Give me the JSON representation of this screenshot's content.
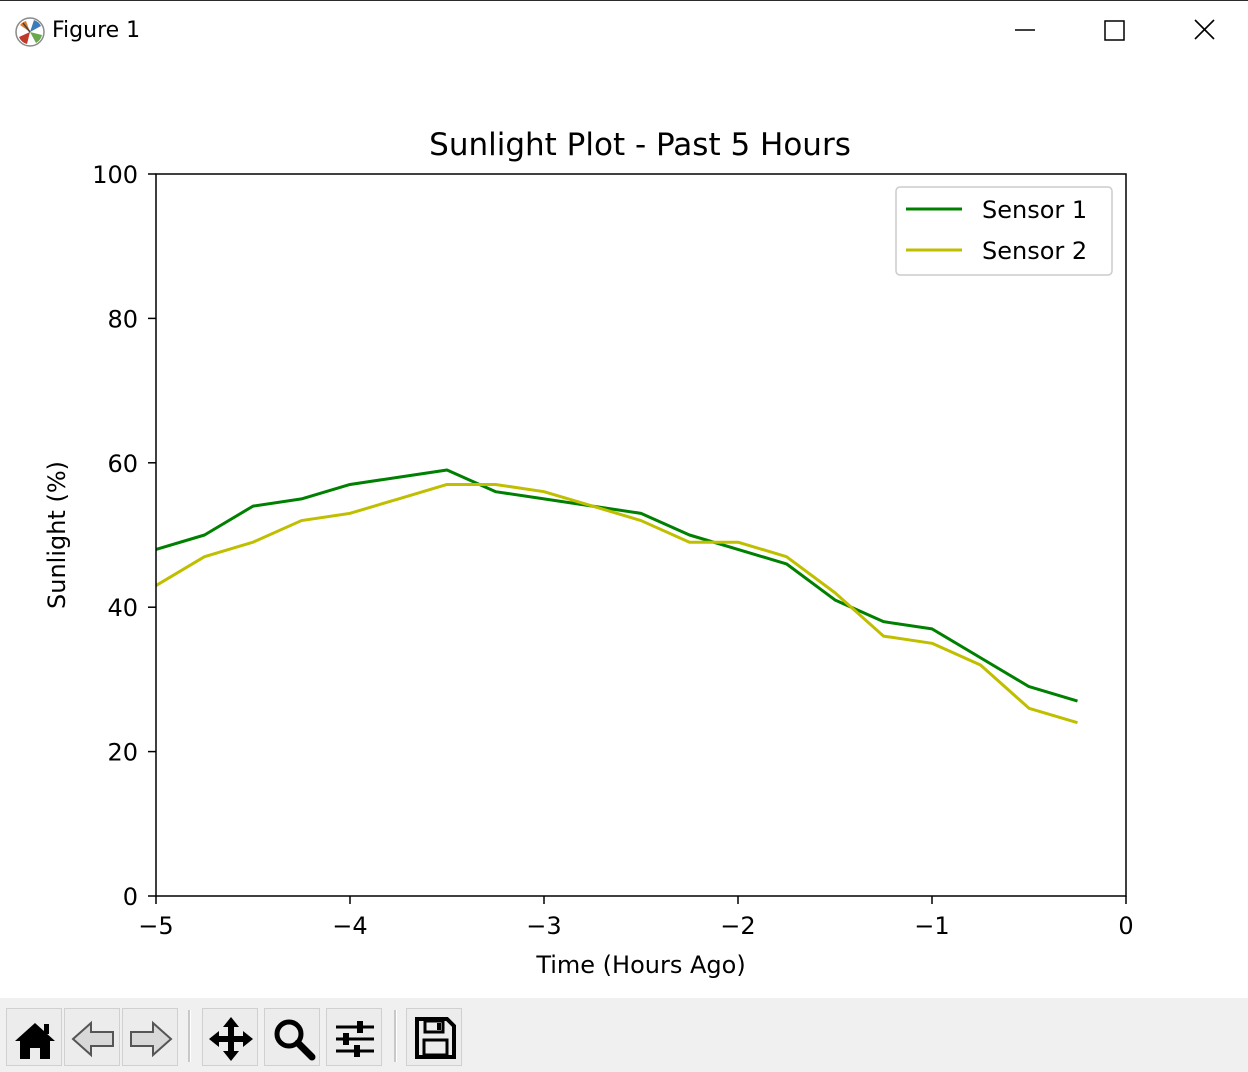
{
  "window": {
    "title": "Figure 1"
  },
  "toolbar": {
    "buttons": [
      {
        "name": "home-button",
        "icon": "home-icon"
      },
      {
        "name": "back-button",
        "icon": "arrow-left-icon"
      },
      {
        "name": "forward-button",
        "icon": "arrow-right-icon"
      },
      {
        "name": "pan-button",
        "icon": "move-icon"
      },
      {
        "name": "zoom-button",
        "icon": "magnifier-icon"
      },
      {
        "name": "configure-subplots-button",
        "icon": "sliders-icon"
      },
      {
        "name": "save-button",
        "icon": "floppy-disk-icon"
      }
    ]
  },
  "chart_data": {
    "type": "line",
    "title": "Sunlight Plot - Past 5 Hours",
    "xlabel": "Time (Hours Ago)",
    "ylabel": "Sunlight (%)",
    "xlim": [
      -5,
      0
    ],
    "ylim": [
      0,
      100
    ],
    "xticks": [
      -5,
      -4,
      -3,
      -2,
      -1,
      0
    ],
    "xtick_labels": [
      "−5",
      "−4",
      "−3",
      "−2",
      "−1",
      "0"
    ],
    "yticks": [
      0,
      20,
      40,
      60,
      80,
      100
    ],
    "ytick_labels": [
      "0",
      "20",
      "40",
      "60",
      "80",
      "100"
    ],
    "grid": false,
    "legend": "top-right",
    "x": [
      -5,
      -4.75,
      -4.5,
      -4.25,
      -4,
      -3.75,
      -3.5,
      -3.25,
      -3,
      -2.75,
      -2.5,
      -2.25,
      -2,
      -1.75,
      -1.5,
      -1.25,
      -1,
      -0.75,
      -0.5,
      -0.25
    ],
    "series": [
      {
        "name": "Sensor 1",
        "color": "#008000",
        "values": [
          48,
          50,
          54,
          55,
          57,
          58,
          59,
          56,
          55,
          54,
          53,
          50,
          48,
          46,
          41,
          38,
          37,
          33,
          29,
          27
        ]
      },
      {
        "name": "Sensor 2",
        "color": "#bfbf00",
        "values": [
          43,
          47,
          49,
          52,
          53,
          55,
          57,
          57,
          56,
          54,
          52,
          49,
          49,
          47,
          42,
          36,
          35,
          32,
          26,
          24
        ]
      }
    ]
  }
}
